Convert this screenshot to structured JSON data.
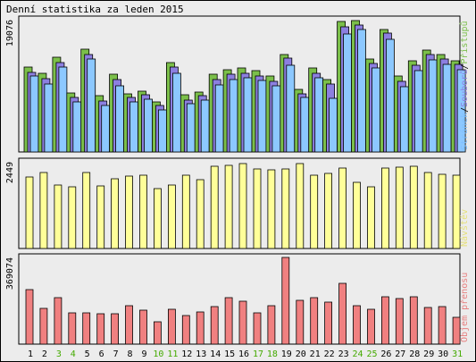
{
  "title": "Denní statistika za leden 2015",
  "colors": {
    "hits": "#7bbf4a",
    "files": "#8c7fe0",
    "pages": "#8cc8ff",
    "visits": "#ffff99",
    "kbytes": "#f08080",
    "weekend": "#44aa00",
    "label_hits": "#7bbf4a",
    "label_files": "#8c7fe0",
    "label_pages": "#7fc0ff",
    "label_visits": "#e6e07a",
    "label_kbytes": "#e88080"
  },
  "chart_data": [
    {
      "type": "bar",
      "name": "top",
      "ymax_label": "19076",
      "ylim": [
        0,
        19076
      ],
      "right_label_parts": [
        "Stránek",
        "/",
        "Souborů",
        "/",
        "Přístupů"
      ],
      "categories": [
        "1",
        "2",
        "3",
        "4",
        "5",
        "6",
        "7",
        "8",
        "9",
        "10",
        "11",
        "12",
        "13",
        "14",
        "15",
        "16",
        "17",
        "18",
        "19",
        "20",
        "21",
        "22",
        "23",
        "24",
        "25",
        "26",
        "27",
        "28",
        "29",
        "30",
        "31"
      ],
      "weekend": [
        false,
        false,
        true,
        true,
        false,
        false,
        false,
        false,
        false,
        true,
        true,
        false,
        false,
        false,
        false,
        false,
        true,
        true,
        false,
        false,
        false,
        false,
        false,
        true,
        true,
        false,
        false,
        false,
        false,
        false,
        true
      ],
      "series": [
        {
          "name": "Přístupů",
          "values": [
            12200,
            11400,
            13600,
            8500,
            14800,
            8100,
            11200,
            8400,
            8800,
            7200,
            12900,
            8200,
            8700,
            11200,
            11900,
            12100,
            11700,
            10900,
            14100,
            9000,
            12100,
            10500,
            18800,
            18900,
            13400,
            17700,
            10900,
            13200,
            14700,
            14100,
            13200
          ]
        },
        {
          "name": "Souborů",
          "values": [
            11500,
            10600,
            12900,
            7900,
            14100,
            7400,
            10400,
            7800,
            8200,
            6700,
            12200,
            7500,
            8100,
            10500,
            11200,
            11400,
            11000,
            10200,
            13500,
            8400,
            11400,
            9800,
            18100,
            18300,
            12700,
            17100,
            10200,
            12500,
            14100,
            13400,
            12600
          ]
        },
        {
          "name": "Stránek",
          "values": [
            10900,
            9800,
            12200,
            7200,
            13400,
            6700,
            9600,
            7200,
            7600,
            6100,
            11400,
            6900,
            7500,
            9700,
            10500,
            10700,
            10300,
            9500,
            12500,
            7800,
            10700,
            7700,
            17000,
            17600,
            12100,
            16300,
            9400,
            11700,
            13300,
            12600,
            11900
          ]
        }
      ]
    },
    {
      "type": "bar",
      "name": "middle",
      "ymax_label": "2449",
      "ylim": [
        0,
        2449
      ],
      "right_label": "Návštěv",
      "categories": [
        "1",
        "2",
        "3",
        "4",
        "5",
        "6",
        "7",
        "8",
        "9",
        "10",
        "11",
        "12",
        "13",
        "14",
        "15",
        "16",
        "17",
        "18",
        "19",
        "20",
        "21",
        "22",
        "23",
        "24",
        "25",
        "26",
        "27",
        "28",
        "29",
        "30",
        "31"
      ],
      "series": [
        {
          "name": "Návštěv",
          "values": [
            2030,
            2150,
            1800,
            1750,
            2140,
            1760,
            1960,
            2040,
            2070,
            1680,
            1780,
            2080,
            1940,
            2330,
            2360,
            2410,
            2240,
            2210,
            2240,
            2410,
            2060,
            2120,
            2260,
            1860,
            1750,
            2260,
            2310,
            2330,
            2140,
            2100,
            2080
          ]
        }
      ]
    },
    {
      "type": "bar",
      "name": "bottom",
      "ymax_label": "369074",
      "ylim": [
        0,
        369074
      ],
      "right_label": "Objem přenosu",
      "categories": [
        "1",
        "2",
        "3",
        "4",
        "5",
        "6",
        "7",
        "8",
        "9",
        "10",
        "11",
        "12",
        "13",
        "14",
        "15",
        "16",
        "17",
        "18",
        "19",
        "20",
        "21",
        "22",
        "23",
        "24",
        "25",
        "26",
        "27",
        "28",
        "29",
        "30",
        "31"
      ],
      "series": [
        {
          "name": "Objem přenosu",
          "values": [
            232000,
            153000,
            196000,
            135000,
            132000,
            128000,
            129000,
            164000,
            146000,
            97000,
            148000,
            123000,
            138000,
            159000,
            196000,
            183000,
            134000,
            165000,
            369074,
            188000,
            196000,
            180000,
            257000,
            164000,
            147000,
            203000,
            193000,
            200000,
            156000,
            161000,
            115000
          ]
        }
      ]
    }
  ]
}
